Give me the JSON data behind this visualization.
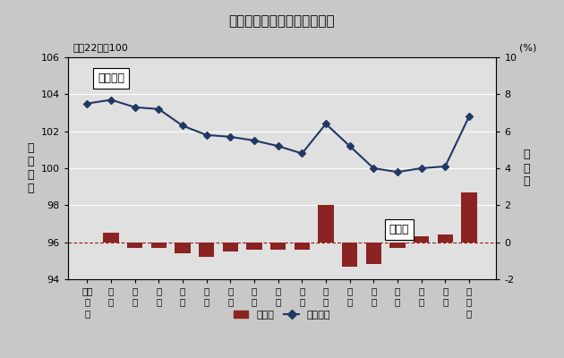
{
  "title": "鳥取市消費者物価指数の推移",
  "subtitle": "平成22年＝100",
  "right_label": "(%)",
  "left_ylabel": "総\n合\n指\n数",
  "right_ylabel": "前\n年\n比",
  "x_labels_line1": [
    "平成",
    "１",
    "１",
    "１",
    "１",
    "１",
    "１",
    "１",
    "１",
    "１",
    "２",
    "２",
    "２",
    "２",
    "２",
    "２",
    "２"
  ],
  "x_labels_line2": [
    "１",
    "１",
    "２",
    "３",
    "４",
    "５",
    "６",
    "７",
    "８",
    "９",
    "０",
    "１",
    "２",
    "３",
    "４",
    "５",
    "６"
  ],
  "x_labels_line3": [
    "０",
    "",
    "",
    "",
    "",
    "",
    "",
    "",
    "",
    "",
    "",
    "",
    "",
    "",
    "",
    "",
    "年"
  ],
  "sougo_index": [
    103.5,
    103.7,
    103.3,
    103.2,
    102.3,
    101.8,
    101.7,
    101.5,
    101.2,
    100.8,
    102.4,
    101.2,
    100.0,
    99.8,
    100.0,
    100.1,
    102.8
  ],
  "bar_values": [
    0.5,
    -0.3,
    -0.3,
    -0.6,
    -0.8,
    -0.5,
    -0.4,
    -0.4,
    -0.4,
    2.0,
    -1.3,
    -1.2,
    -0.3,
    0.3,
    0.4,
    2.7
  ],
  "bar_color": "#8B2323",
  "line_color": "#1F3864",
  "bg_color": "#C8C8C8",
  "plot_bg": "#E0E0E0",
  "ylim_left": [
    94,
    106
  ],
  "ylim_right": [
    -2,
    10
  ],
  "legend_sougo": "総合指数",
  "legend_zennen": "前年比",
  "box_sougo_label": "総合指数",
  "box_zennen_label": "前年比"
}
